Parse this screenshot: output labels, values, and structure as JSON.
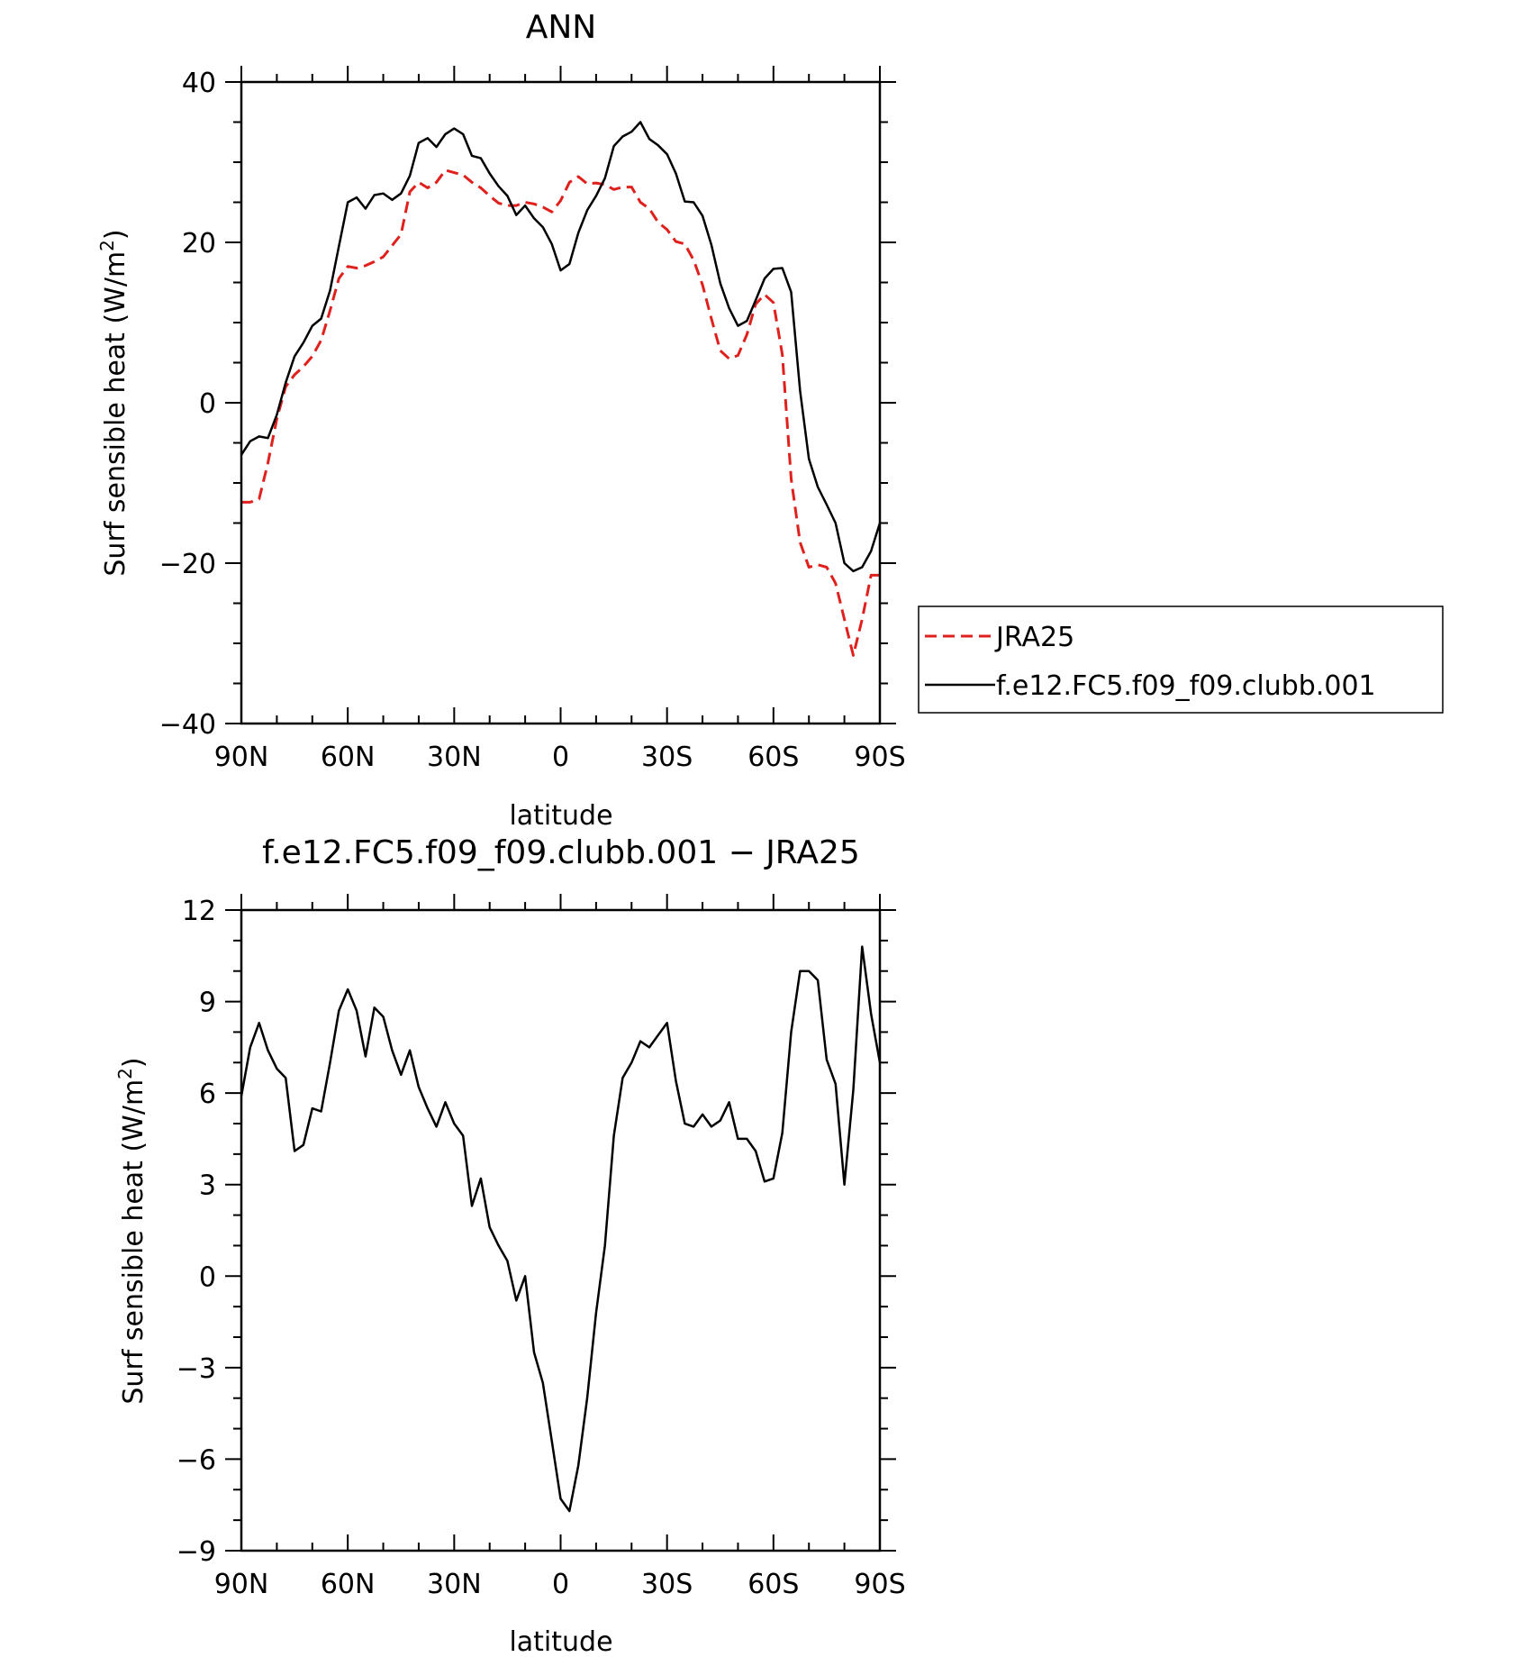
{
  "chart_data": [
    {
      "type": "line",
      "title": "ANN",
      "xlabel": "latitude",
      "ylabel_text": "Surf sensible heat (W/m",
      "ylabel_sup": "2",
      "ylabel_close": ")",
      "xlim": [
        90,
        -90
      ],
      "ylim": [
        -40,
        40
      ],
      "xticks": [
        {
          "value": 90,
          "label": "90N"
        },
        {
          "value": 60,
          "label": "60N"
        },
        {
          "value": 30,
          "label": "30N"
        },
        {
          "value": 0,
          "label": "0"
        },
        {
          "value": -30,
          "label": "30S"
        },
        {
          "value": -60,
          "label": "60S"
        },
        {
          "value": -90,
          "label": "90S"
        }
      ],
      "yticks": [
        {
          "value": 40,
          "label": "40"
        },
        {
          "value": 20,
          "label": "20"
        },
        {
          "value": 0,
          "label": "0"
        },
        {
          "value": -20,
          "label": "−20"
        },
        {
          "value": -40,
          "label": "−40"
        }
      ],
      "legend": {
        "placement": "right"
      },
      "series": [
        {
          "name": "JRA25",
          "color": "#e0201c",
          "dash": true,
          "x": [
            90,
            87.5,
            85,
            82.5,
            80,
            77.5,
            75,
            72.5,
            70,
            67.5,
            65,
            62.5,
            60,
            57.5,
            55,
            52.5,
            50,
            47.5,
            45,
            42.5,
            40,
            37.5,
            35,
            32.5,
            30,
            27.5,
            25,
            22.5,
            20,
            17.5,
            15,
            12.5,
            10,
            7.5,
            5,
            2.5,
            0,
            -2.5,
            -5,
            -7.5,
            -10,
            -12.5,
            -15,
            -17.5,
            -20,
            -22.5,
            -25,
            -27.5,
            -30,
            -32.5,
            -35,
            -37.5,
            -40,
            -42.5,
            -45,
            -47.5,
            -50,
            -52.5,
            -55,
            -57.5,
            -60,
            -62.5,
            -65,
            -67.5,
            -70,
            -72.5,
            -75,
            -77.5,
            -80,
            -82.5,
            -85,
            -87.5,
            -90
          ],
          "y": [
            -12.4,
            -12.4,
            -12,
            -7.5,
            -2,
            2,
            3.5,
            4.5,
            5.8,
            7.8,
            11.5,
            15.5,
            17,
            16.8,
            17.1,
            17.6,
            18.2,
            19.6,
            21,
            26.3,
            27.5,
            26.8,
            27.5,
            29,
            28.7,
            28.4,
            27.5,
            26.8,
            25.8,
            24.9,
            24.6,
            24.6,
            25,
            24.8,
            24.4,
            23.8,
            25.2,
            27.5,
            28.2,
            27.3,
            27.4,
            27.2,
            26.6,
            26.9,
            26.9,
            25,
            24.2,
            22.5,
            21.6,
            20.1,
            19.8,
            17.8,
            14.7,
            10.5,
            6.5,
            5.5,
            5.9,
            8.5,
            12.3,
            13.5,
            12.5,
            6,
            -9.5,
            -17.4,
            -20.5,
            -20.2,
            -20.5,
            -22.5,
            -27,
            -31.5,
            -27,
            -21.5,
            -21.5
          ]
        },
        {
          "name": "f.e12.FC5.f09_f09.clubb.001",
          "color": "#000000",
          "dash": false,
          "x": [
            90,
            87.5,
            85,
            82.5,
            80,
            77.5,
            75,
            72.5,
            70,
            67.5,
            65,
            62.5,
            60,
            57.5,
            55,
            52.5,
            50,
            47.5,
            45,
            42.5,
            40,
            37.5,
            35,
            32.5,
            30,
            27.5,
            25,
            22.5,
            20,
            17.5,
            15,
            12.5,
            10,
            7.5,
            5,
            2.5,
            0,
            -2.5,
            -5,
            -7.5,
            -10,
            -12.5,
            -15,
            -17.5,
            -20,
            -22.5,
            -25,
            -27.5,
            -30,
            -32.5,
            -35,
            -37.5,
            -40,
            -42.5,
            -45,
            -47.5,
            -50,
            -52.5,
            -55,
            -57.5,
            -60,
            -62.5,
            -65,
            -67.5,
            -70,
            -72.5,
            -75,
            -77.5,
            -80,
            -82.5,
            -85,
            -87.5,
            -90
          ],
          "y": [
            -6.5,
            -4.8,
            -4.2,
            -4.4,
            -1.5,
            2.5,
            5.8,
            7.5,
            9.6,
            10.5,
            14,
            19.5,
            25,
            25.6,
            24.2,
            25.9,
            26.1,
            25.3,
            26.1,
            28.3,
            32.4,
            33,
            31.9,
            33.5,
            34.2,
            33.5,
            30.8,
            30.5,
            28.6,
            27,
            25.8,
            23.4,
            24.6,
            23,
            21.9,
            19.8,
            16.5,
            17.3,
            21.2,
            24,
            25.8,
            28,
            32,
            33.2,
            33.8,
            35,
            32.9,
            32.1,
            31,
            28.6,
            25.1,
            25,
            23.3,
            19.7,
            14.9,
            11.8,
            9.6,
            10.2,
            12.8,
            15.5,
            16.7,
            16.8,
            13.8,
            1.5,
            -7,
            -10.5,
            -12.7,
            -15,
            -20,
            -21,
            -20.5,
            -18.5,
            -15
          ]
        }
      ]
    },
    {
      "type": "line",
      "title": "f.e12.FC5.f09_f09.clubb.001 − JRA25",
      "xlabel": "latitude",
      "ylabel_text": "Surf sensible heat (W/m",
      "ylabel_sup": "2",
      "ylabel_close": ")",
      "xlim": [
        90,
        -90
      ],
      "ylim": [
        -9,
        12
      ],
      "xticks": [
        {
          "value": 90,
          "label": "90N"
        },
        {
          "value": 60,
          "label": "60N"
        },
        {
          "value": 30,
          "label": "30N"
        },
        {
          "value": 0,
          "label": "0"
        },
        {
          "value": -30,
          "label": "30S"
        },
        {
          "value": -60,
          "label": "60S"
        },
        {
          "value": -90,
          "label": "90S"
        }
      ],
      "yticks": [
        {
          "value": 12,
          "label": "12"
        },
        {
          "value": 9,
          "label": "9"
        },
        {
          "value": 6,
          "label": "6"
        },
        {
          "value": 3,
          "label": "3"
        },
        {
          "value": 0,
          "label": "0"
        },
        {
          "value": -3,
          "label": "−3"
        },
        {
          "value": -6,
          "label": "−6"
        },
        {
          "value": -9,
          "label": "−9"
        }
      ],
      "series": [
        {
          "color": "#000000",
          "dash": false,
          "x": [
            90,
            87.5,
            85,
            82.5,
            80,
            77.5,
            75,
            72.5,
            70,
            67.5,
            65,
            62.5,
            60,
            57.5,
            55,
            52.5,
            50,
            47.5,
            45,
            42.5,
            40,
            37.5,
            35,
            32.5,
            30,
            27.5,
            25,
            22.5,
            20,
            17.5,
            15,
            12.5,
            10,
            7.5,
            5,
            2.5,
            0,
            -2.5,
            -5,
            -7.5,
            -10,
            -12.5,
            -15,
            -17.5,
            -20,
            -22.5,
            -25,
            -27.5,
            -30,
            -32.5,
            -35,
            -37.5,
            -40,
            -42.5,
            -45,
            -47.5,
            -50,
            -52.5,
            -55,
            -57.5,
            -60,
            -62.5,
            -65,
            -67.5,
            -70,
            -72.5,
            -75,
            -77.5,
            -80,
            -82.5,
            -85,
            -87.5,
            -90
          ],
          "y": [
            5.9,
            7.5,
            8.3,
            7.4,
            6.8,
            6.5,
            4.1,
            4.3,
            5.5,
            5.4,
            7,
            8.7,
            9.4,
            8.7,
            7.2,
            8.8,
            8.5,
            7.4,
            6.6,
            7.4,
            6.2,
            5.5,
            4.9,
            5.7,
            5,
            4.6,
            2.3,
            3.2,
            1.6,
            1,
            0.5,
            -0.8,
            0,
            -2.5,
            -3.5,
            -5.4,
            -7.3,
            -7.7,
            -6.2,
            -4,
            -1.2,
            1,
            4.6,
            6.5,
            7,
            7.7,
            7.5,
            7.9,
            8.3,
            6.4,
            5,
            4.9,
            5.3,
            4.9,
            5.1,
            5.7,
            4.5,
            4.5,
            4.1,
            3.1,
            3.2,
            4.7,
            8,
            10,
            10,
            9.7,
            7.1,
            6.3,
            3,
            6.1,
            10.8,
            8.6,
            7
          ]
        }
      ]
    }
  ]
}
